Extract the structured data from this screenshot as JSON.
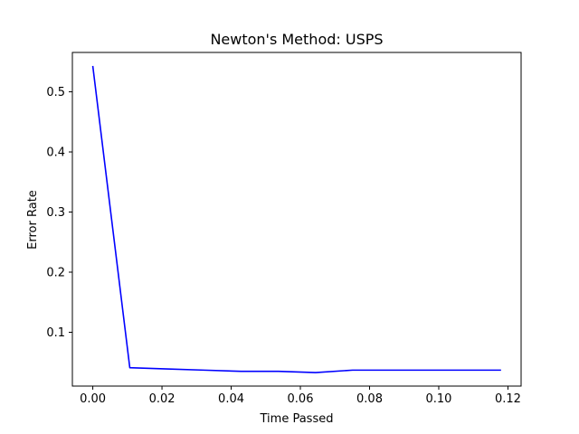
{
  "chart_data": {
    "type": "line",
    "title": "Newton's Method: USPS",
    "xlabel": "Time Passed",
    "ylabel": "Error Rate",
    "xlim": [
      -0.0059,
      0.1238
    ],
    "ylim": [
      0.0105,
      0.5655
    ],
    "x_ticks": [
      0.0,
      0.02,
      0.04,
      0.06,
      0.08,
      0.1,
      0.12
    ],
    "x_tick_labels": [
      "0.00",
      "0.02",
      "0.04",
      "0.06",
      "0.08",
      "0.10",
      "0.12"
    ],
    "y_ticks": [
      0.1,
      0.2,
      0.3,
      0.4,
      0.5
    ],
    "y_tick_labels": [
      "0.1",
      "0.2",
      "0.3",
      "0.4",
      "0.5"
    ],
    "grid": false,
    "series": [
      {
        "color": "#0000ff",
        "x": [
          0.0,
          0.0107,
          0.0215,
          0.0322,
          0.0429,
          0.0537,
          0.0644,
          0.0751,
          0.0859,
          0.0966,
          0.1073,
          0.118
        ],
        "y": [
          0.543,
          0.041,
          0.039,
          0.037,
          0.035,
          0.035,
          0.033,
          0.037,
          0.037,
          0.037,
          0.037,
          0.037
        ]
      }
    ]
  }
}
